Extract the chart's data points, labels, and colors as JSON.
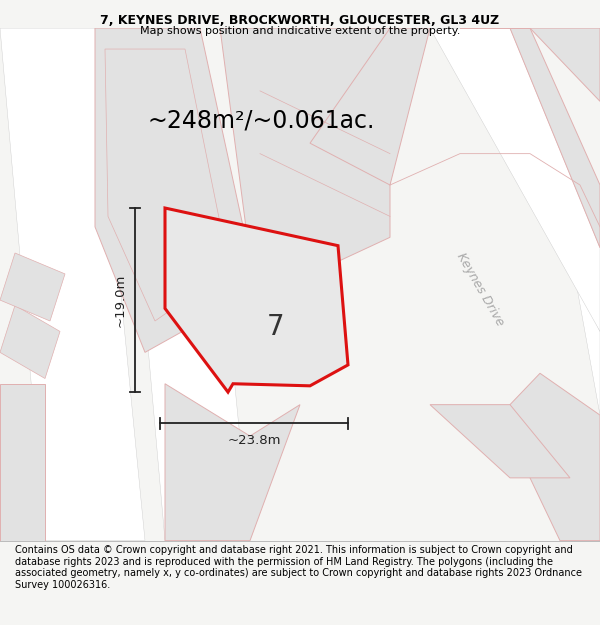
{
  "title_line1": "7, KEYNES DRIVE, BROCKWORTH, GLOUCESTER, GL3 4UZ",
  "title_line2": "Map shows position and indicative extent of the property.",
  "area_text": "~248m²/~0.061ac.",
  "property_number": "7",
  "dim_width": "~23.8m",
  "dim_height": "~19.0m",
  "road_label": "Keynes Drive",
  "footer_text": "Contains OS data © Crown copyright and database right 2021. This information is subject to Crown copyright and database rights 2023 and is reproduced with the permission of HM Land Registry. The polygons (including the associated geometry, namely x, y co-ordinates) are subject to Crown copyright and database rights 2023 Ordnance Survey 100026316.",
  "fig_bg": "#f5f5f3",
  "map_bg": "#f5f5f3",
  "parcel_fill": "#e2e2e2",
  "parcel_edge": "#e0b0b0",
  "property_fill": "#e8e8e8",
  "property_edge": "#dd1111",
  "road_fill": "#ffffff",
  "text_color": "#000000",
  "road_label_color": "#aaaaaa",
  "dim_color": "#222222",
  "title_fontsize": 9.0,
  "subtitle_fontsize": 8.0,
  "area_fontsize": 17,
  "num_fontsize": 20,
  "footer_fontsize": 7.0,
  "dim_fontsize": 9.5
}
